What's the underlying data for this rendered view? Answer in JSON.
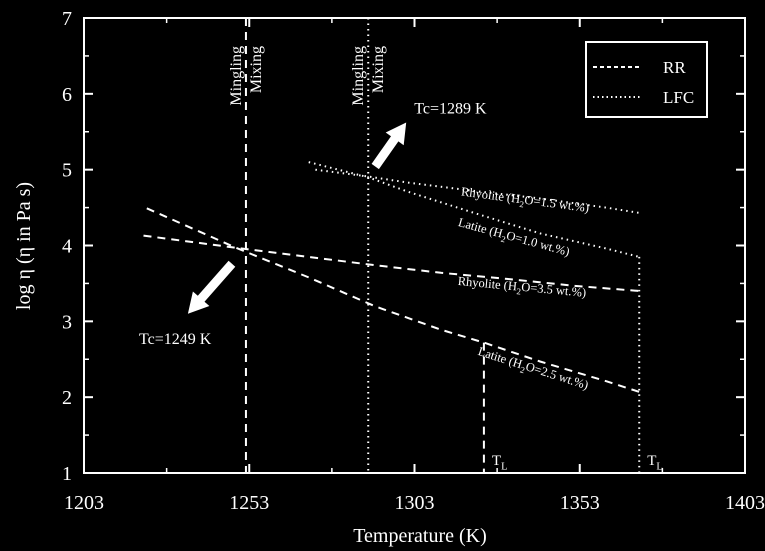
{
  "chart_data": {
    "type": "line",
    "xlabel": "Temperature (K)",
    "ylabel": "log η (η in Pa s)",
    "xlim": [
      1203,
      1403
    ],
    "ylim": [
      1,
      7
    ],
    "x_ticks": [
      "1203",
      "1253",
      "1303",
      "1353",
      "1403"
    ],
    "y_ticks": [
      "1",
      "2",
      "3",
      "4",
      "5",
      "6",
      "7"
    ],
    "grid": false,
    "legend": {
      "placement": "top-right",
      "entries": [
        {
          "label": "RR",
          "style": "dashed"
        },
        {
          "label": "LFC",
          "style": "dotted"
        }
      ]
    },
    "series": [
      {
        "name": "Rhyolite (H2O=1.5 wt.%)",
        "label_text": "Rhyolite (H",
        "label_sub": "2",
        "label_tail": "O=1.5 wt.%)",
        "style": "dotted",
        "model": "LFC",
        "x": [
          1273,
          1289,
          1301,
          1321,
          1341,
          1361,
          1371
        ],
        "y": [
          5.0,
          4.91,
          4.83,
          4.72,
          4.62,
          4.5,
          4.43
        ]
      },
      {
        "name": "Latite (H2O=1.0 wt.%)",
        "label_text": "Latite (H",
        "label_sub": "2",
        "label_tail": "O=1.0 wt.%)",
        "style": "dotted",
        "model": "LFC",
        "x": [
          1271,
          1289,
          1301,
          1321,
          1341,
          1361,
          1371
        ],
        "y": [
          5.1,
          4.9,
          4.71,
          4.43,
          4.16,
          3.96,
          3.85
        ]
      },
      {
        "name": "Rhyolite (H2O=3.5 wt.%)",
        "label_text": "Rhyolite (H",
        "label_sub": "2",
        "label_tail": "O=3.5 wt.%)",
        "style": "dashed",
        "model": "RR",
        "x": [
          1221,
          1249,
          1271,
          1291,
          1311,
          1331,
          1351,
          1371
        ],
        "y": [
          4.13,
          3.97,
          3.85,
          3.74,
          3.64,
          3.56,
          3.47,
          3.4
        ]
      },
      {
        "name": "Latite (H2O=2.5 wt.%)",
        "label_text": "Latite (H",
        "label_sub": "2",
        "label_tail": "O=2.5 wt.%)",
        "style": "dashed",
        "model": "RR",
        "x": [
          1222,
          1249,
          1271,
          1291,
          1311,
          1324,
          1341,
          1361,
          1371
        ],
        "y": [
          4.49,
          3.97,
          3.58,
          3.2,
          2.89,
          2.72,
          2.47,
          2.21,
          2.07
        ]
      }
    ],
    "vertical_lines": [
      {
        "x": 1252,
        "style": "dashed",
        "labels": [
          "Mingling",
          "Mixing"
        ]
      },
      {
        "x": 1289,
        "style": "dotted",
        "labels": [
          "Mingling",
          "Mixing"
        ]
      },
      {
        "x": 1324,
        "y_top": 2.72,
        "style": "dashed",
        "labels": []
      },
      {
        "x": 1371,
        "y_top": 3.85,
        "style": "dotted",
        "labels": []
      }
    ],
    "annotations": [
      {
        "id": "tc1289",
        "text": "Tc=1289 K",
        "point_x": 1289,
        "point_y": 4.91
      },
      {
        "id": "tc1249",
        "text": "Tc=1249 K",
        "point_x": 1252,
        "point_y": 3.97
      },
      {
        "id": "tl1",
        "text": "T",
        "sub": "L",
        "x": 1324
      },
      {
        "id": "tl2",
        "text": "T",
        "sub": "L",
        "x": 1371
      }
    ]
  }
}
